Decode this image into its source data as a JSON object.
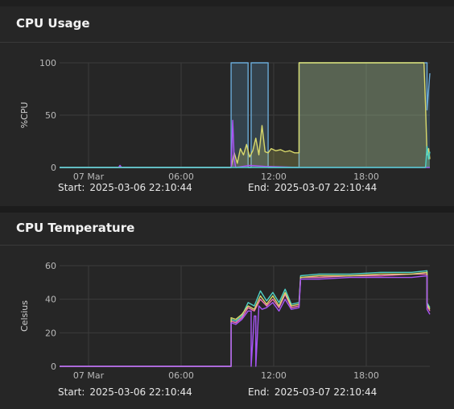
{
  "panels": [
    {
      "title": "CPU Usage",
      "start_label": "Start:",
      "start_value": "2025-03-06 22:10:44",
      "end_label": "End:",
      "end_value": "2025-03-07 22:10:44"
    },
    {
      "title": "CPU Temperature",
      "start_label": "Start:",
      "start_value": "2025-03-06 22:10:44",
      "end_label": "End:",
      "end_value": "2025-03-07 22:10:44"
    }
  ],
  "chart_data": [
    {
      "type": "area",
      "title": "CPU Usage",
      "xlabel": "",
      "ylabel": "%CPU",
      "ylim": [
        0,
        100
      ],
      "yticks": [
        0,
        50,
        100
      ],
      "xticks": [
        "07 Mar",
        "06:00",
        "12:00",
        "18:00"
      ],
      "xlim_hours": [
        -1.82,
        22.18
      ],
      "grid": true,
      "series": [
        {
          "color": "#6aa9d6",
          "x": [
            -1.82,
            9.3,
            9.3,
            10.4,
            10.4,
            10.6,
            10.6,
            11.7,
            11.7,
            13.7,
            13.7,
            22.0,
            22.0,
            22.18
          ],
          "values": [
            0,
            0,
            100,
            100,
            0,
            0,
            100,
            100,
            0,
            0,
            100,
            100,
            55,
            90
          ]
        },
        {
          "color": "#d9d96b",
          "x": [
            -1.82,
            9.3,
            9.5,
            9.7,
            9.9,
            10.1,
            10.3,
            10.5,
            10.7,
            10.9,
            11.1,
            11.3,
            11.5,
            11.7,
            11.9,
            12.2,
            12.5,
            12.8,
            13.1,
            13.4,
            13.7,
            13.7,
            16.0,
            18.0,
            20.0,
            21.8,
            21.9,
            22.0,
            22.1,
            22.18
          ],
          "values": [
            0,
            0,
            14,
            4,
            18,
            12,
            22,
            10,
            16,
            28,
            12,
            40,
            15,
            14,
            18,
            16,
            17,
            15,
            16,
            14,
            14,
            100,
            100,
            100,
            100,
            100,
            60,
            12,
            18,
            8
          ]
        },
        {
          "color": "#a855f7",
          "x": [
            -1.82,
            2.0,
            2.1,
            2.2,
            9.3,
            9.4,
            9.5,
            9.6,
            10.5,
            11.5,
            13.7,
            22.0,
            22.18
          ],
          "values": [
            0,
            0,
            2,
            0,
            0,
            45,
            8,
            0,
            2,
            1,
            0,
            0,
            0
          ]
        },
        {
          "color": "#4fd1c5",
          "x": [
            -1.82,
            13.7,
            21.9,
            22.0,
            22.1,
            22.18
          ],
          "values": [
            0,
            0,
            0,
            20,
            8,
            15
          ]
        }
      ]
    },
    {
      "type": "line",
      "title": "CPU Temperature",
      "xlabel": "",
      "ylabel": "Celsius",
      "ylim": [
        0,
        60
      ],
      "yticks": [
        0,
        20,
        40,
        60
      ],
      "xticks": [
        "07 Mar",
        "06:00",
        "12:00",
        "18:00"
      ],
      "xlim_hours": [
        -1.82,
        22.18
      ],
      "grid": true,
      "series": [
        {
          "color": "#4fd1c5",
          "x": [
            -1.82,
            9.3,
            9.3,
            9.6,
            10.0,
            10.4,
            10.8,
            11.2,
            11.6,
            12.0,
            12.4,
            12.8,
            13.2,
            13.7,
            13.8,
            15.0,
            17.0,
            19.0,
            21.0,
            22.0,
            22.0,
            22.18
          ],
          "values": [
            0,
            0,
            28,
            27,
            30,
            38,
            36,
            45,
            39,
            44,
            38,
            46,
            37,
            38,
            54,
            55,
            55,
            56,
            56,
            57,
            38,
            35
          ]
        },
        {
          "color": "#f472b6",
          "x": [
            -1.82,
            9.3,
            9.3,
            9.6,
            10.0,
            10.4,
            10.8,
            11.2,
            11.6,
            12.0,
            12.4,
            12.8,
            13.2,
            13.7,
            13.8,
            15.0,
            17.0,
            19.0,
            21.0,
            22.0,
            22.0,
            22.18
          ],
          "values": [
            0,
            0,
            27,
            26,
            29,
            35,
            33,
            40,
            36,
            40,
            35,
            43,
            35,
            36,
            53,
            53,
            54,
            54,
            55,
            55,
            36,
            33
          ]
        },
        {
          "color": "#d9d96b",
          "x": [
            -1.82,
            9.3,
            9.3,
            9.6,
            10.0,
            10.4,
            10.8,
            11.2,
            11.6,
            12.0,
            12.4,
            12.8,
            13.2,
            13.7,
            13.8,
            15.0,
            17.0,
            19.0,
            21.0,
            22.0,
            22.0,
            22.18
          ],
          "values": [
            0,
            0,
            29,
            28,
            31,
            36,
            34,
            42,
            37,
            42,
            36,
            44,
            36,
            37,
            53,
            54,
            54,
            55,
            55,
            56,
            37,
            34
          ]
        },
        {
          "color": "#a855f7",
          "x": [
            -1.82,
            9.3,
            9.3,
            9.6,
            10.0,
            10.4,
            10.6,
            10.6,
            10.8,
            10.9,
            10.9,
            11.1,
            11.3,
            11.6,
            12.0,
            12.4,
            12.8,
            13.2,
            13.7,
            13.8,
            15.0,
            17.0,
            19.0,
            21.0,
            22.0,
            22.0,
            22.18
          ],
          "values": [
            0,
            0,
            26,
            25,
            28,
            33,
            33,
            0,
            30,
            30,
            0,
            36,
            34,
            35,
            38,
            33,
            40,
            34,
            35,
            52,
            52,
            53,
            53,
            53,
            54,
            34,
            31
          ]
        }
      ]
    }
  ]
}
